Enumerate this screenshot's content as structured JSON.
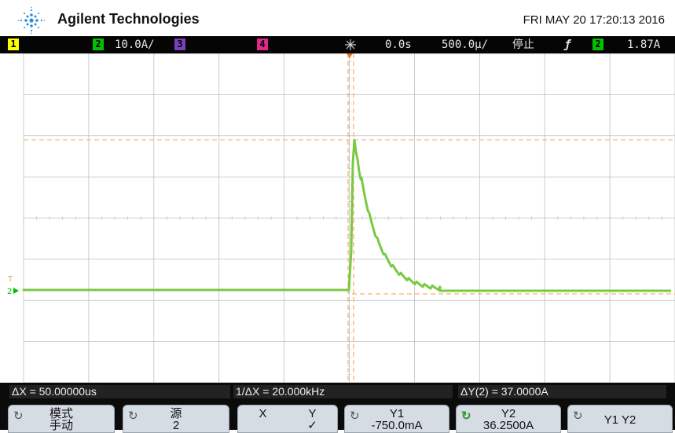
{
  "header": {
    "brand": "Agilent Technologies",
    "datetime": "FRI MAY 20 17:20:13 2016",
    "logo_icon": "agilent-spark-icon"
  },
  "status_bar": {
    "ch1_label": "1",
    "ch2_label": "2",
    "ch2_scale": "10.0A/",
    "ch3_label": "3",
    "ch4_label": "4",
    "trigger_position": "0.0s",
    "timebase": "500.0µ/",
    "run_state": "停止",
    "trigger_slope_icon": "rising-edge-icon",
    "trigger_channel": "2",
    "trigger_level": "1.87A",
    "colors": {
      "ch1": "#ffff00",
      "ch2": "#00c000",
      "ch3": "#7b3fb8",
      "ch4": "#e0288a"
    }
  },
  "measurements": {
    "delta_x": "ΔX = 50.00000us",
    "inverse_delta_x": "1/ΔX = 20.000kHz",
    "delta_y": "ΔY(2) = 37.0000A"
  },
  "softkeys": [
    {
      "line1": "模式",
      "line2": "手动",
      "icon": "rotate-knob-icon"
    },
    {
      "line1": "源",
      "line2": "2",
      "icon": "rotate-knob-icon"
    },
    {
      "line1": "X",
      "line2": "",
      "line1b": "Y",
      "line2b": "✓"
    },
    {
      "line1": "Y1",
      "line2": "-750.0mA",
      "icon": "rotate-knob-icon"
    },
    {
      "line1": "Y2",
      "line2": "36.2500A",
      "icon": "rotate-knob-active-icon"
    },
    {
      "line1": "Y1 Y2",
      "line2": "",
      "icon": "rotate-knob-icon"
    }
  ],
  "screen": {
    "ground_marker": "2",
    "trigger_marker": "T",
    "trace_color": "#7ac943",
    "cursor_color": "#f0a040"
  }
}
